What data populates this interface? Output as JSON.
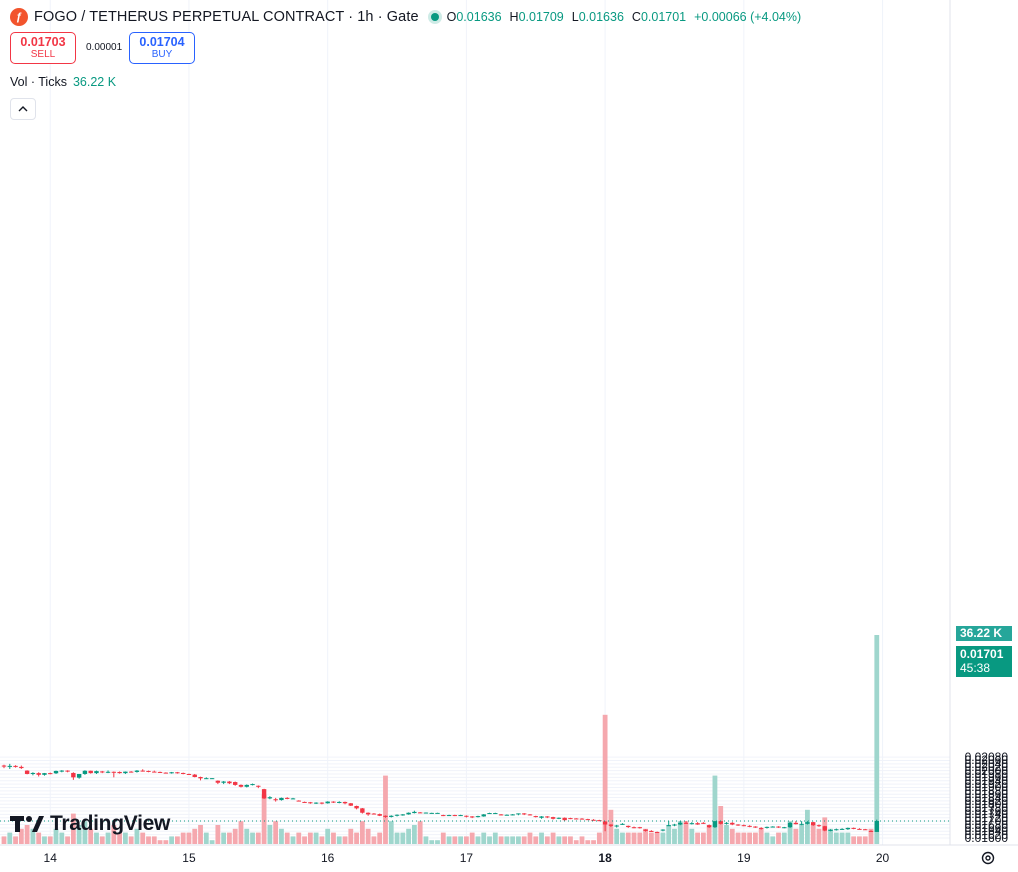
{
  "header": {
    "symbol_title": "FOGO / TETHERUS PERPETUAL CONTRACT · 1h · Gate",
    "icon": "fogo-logo-icon",
    "open_label": "O",
    "open_value": "0.01636",
    "high_label": "H",
    "high_value": "0.01709",
    "low_label": "L",
    "low_value": "0.01636",
    "close_label": "C",
    "close_value": "0.01701",
    "change": "+0.00066 (+4.04%)"
  },
  "trade": {
    "sell_price": "0.01703",
    "sell_label": "SELL",
    "spread": "0.00001",
    "buy_price": "0.01704",
    "buy_label": "BUY"
  },
  "volume_legend": {
    "label": "Vol · Ticks",
    "value": "36.22 K"
  },
  "price_tags": {
    "volume": "36.22 K",
    "price": "0.01701",
    "countdown": "45:38"
  },
  "branding": {
    "logo_text": "TradingView"
  },
  "colors": {
    "up": "#089981",
    "down": "#f23645",
    "up_volume": "#9fd6cd",
    "down_volume": "#f5a8ae",
    "grid": "#f0f3fa"
  },
  "chart_data": {
    "type": "candlestick",
    "y_axis": {
      "range": [
        0.0159,
        0.0209
      ],
      "ticks": [
        "0.02080",
        "0.02060",
        "0.02040",
        "0.02020",
        "0.02000",
        "0.01980",
        "0.01960",
        "0.01940",
        "0.01920",
        "0.01900",
        "0.01880",
        "0.01860",
        "0.01840",
        "0.01820",
        "0.01800",
        "0.01780",
        "0.01760",
        "0.01740",
        "0.01720",
        "0.01700",
        "0.01680",
        "0.01660",
        "0.01640",
        "0.01620",
        "0.01600"
      ]
    },
    "x_axis": {
      "ticks": [
        {
          "label": "14",
          "index": 8,
          "bold": false
        },
        {
          "label": "15",
          "index": 32,
          "bold": false
        },
        {
          "label": "16",
          "index": 56,
          "bold": false
        },
        {
          "label": "17",
          "index": 80,
          "bold": false
        },
        {
          "label": "18",
          "index": 104,
          "bold": true
        },
        {
          "label": "19",
          "index": 128,
          "bold": false
        },
        {
          "label": "20",
          "index": 152,
          "bold": false
        }
      ]
    },
    "candles": [
      [
        0.0203,
        0.02035,
        0.02015,
        0.02025,
        0.2
      ],
      [
        0.02025,
        0.0204,
        0.0201,
        0.02028,
        0.3
      ],
      [
        0.02028,
        0.02032,
        0.02018,
        0.02022,
        0.2
      ],
      [
        0.02022,
        0.0203,
        0.0201,
        0.02015,
        0.4
      ],
      [
        0.02,
        0.02002,
        0.01978,
        0.0198,
        0.5
      ],
      [
        0.0198,
        0.0199,
        0.01972,
        0.01986,
        0.4
      ],
      [
        0.01985,
        0.0199,
        0.01965,
        0.01975,
        0.3
      ],
      [
        0.01975,
        0.01986,
        0.0197,
        0.01985,
        0.2
      ],
      [
        0.01985,
        0.01988,
        0.01978,
        0.01984,
        0.2
      ],
      [
        0.01984,
        0.02,
        0.0198,
        0.01998,
        0.4
      ],
      [
        0.01998,
        0.02003,
        0.0199,
        0.02,
        0.3
      ],
      [
        0.02,
        0.02002,
        0.0199,
        0.01994,
        0.2
      ],
      [
        0.01986,
        0.0199,
        0.01945,
        0.0196,
        0.8
      ],
      [
        0.01958,
        0.0198,
        0.01952,
        0.0198,
        0.5
      ],
      [
        0.0198,
        0.02002,
        0.01975,
        0.01999,
        0.6
      ],
      [
        0.01999,
        0.02,
        0.01982,
        0.01985,
        0.4
      ],
      [
        0.01985,
        0.02,
        0.0198,
        0.01997,
        0.3
      ],
      [
        0.01995,
        0.01998,
        0.01985,
        0.0199,
        0.2
      ],
      [
        0.0199,
        0.02001,
        0.01985,
        0.01993,
        0.3
      ],
      [
        0.01993,
        0.01995,
        0.0196,
        0.0199,
        0.5
      ],
      [
        0.01992,
        0.01995,
        0.01982,
        0.01985,
        0.3
      ],
      [
        0.01985,
        0.01995,
        0.0198,
        0.01994,
        0.3
      ],
      [
        0.01994,
        0.01997,
        0.01988,
        0.01992,
        0.2
      ],
      [
        0.01992,
        0.02003,
        0.01988,
        0.02,
        0.4
      ],
      [
        0.02,
        0.02008,
        0.01994,
        0.01998,
        0.3
      ],
      [
        0.01998,
        0.02,
        0.0199,
        0.01996,
        0.2
      ],
      [
        0.01994,
        0.02,
        0.0199,
        0.01992,
        0.2
      ],
      [
        0.01992,
        0.01994,
        0.01986,
        0.0199,
        0.1
      ],
      [
        0.01988,
        0.0199,
        0.01986,
        0.01987,
        0.1
      ],
      [
        0.01987,
        0.01992,
        0.01982,
        0.0199,
        0.2
      ],
      [
        0.0199,
        0.01992,
        0.01982,
        0.01986,
        0.2
      ],
      [
        0.01986,
        0.01988,
        0.01978,
        0.0198,
        0.3
      ],
      [
        0.0198,
        0.01982,
        0.01974,
        0.01978,
        0.3
      ],
      [
        0.01976,
        0.0198,
        0.0196,
        0.01962,
        0.4
      ],
      [
        0.01962,
        0.01964,
        0.01942,
        0.01954,
        0.5
      ],
      [
        0.01954,
        0.0196,
        0.0195,
        0.01955,
        0.3
      ],
      [
        0.01955,
        0.01956,
        0.01954,
        0.01955,
        0.1
      ],
      [
        0.0194,
        0.01942,
        0.0192,
        0.01928,
        0.5
      ],
      [
        0.01928,
        0.01938,
        0.0192,
        0.01935,
        0.3
      ],
      [
        0.01935,
        0.01938,
        0.0192,
        0.01925,
        0.3
      ],
      [
        0.01932,
        0.01935,
        0.0191,
        0.01915,
        0.4
      ],
      [
        0.01915,
        0.01918,
        0.019,
        0.01904,
        0.6
      ],
      [
        0.01904,
        0.01918,
        0.019,
        0.01915,
        0.4
      ],
      [
        0.01915,
        0.01923,
        0.01912,
        0.0192,
        0.3
      ],
      [
        0.0191,
        0.01912,
        0.01896,
        0.01905,
        0.3
      ],
      [
        0.0189,
        0.01892,
        0.01832,
        0.01835,
        1.3
      ],
      [
        0.01835,
        0.01848,
        0.0183,
        0.01842,
        0.5
      ],
      [
        0.0183,
        0.01838,
        0.01816,
        0.01825,
        0.6
      ],
      [
        0.01825,
        0.0184,
        0.01822,
        0.01838,
        0.4
      ],
      [
        0.01838,
        0.01842,
        0.0183,
        0.01833,
        0.3
      ],
      [
        0.01835,
        0.01838,
        0.01833,
        0.01835,
        0.2
      ],
      [
        0.01822,
        0.01824,
        0.01818,
        0.01818,
        0.3
      ],
      [
        0.01814,
        0.01816,
        0.0181,
        0.01812,
        0.2
      ],
      [
        0.01812,
        0.01814,
        0.01803,
        0.01806,
        0.3
      ],
      [
        0.01806,
        0.01812,
        0.01802,
        0.0181,
        0.3
      ],
      [
        0.0181,
        0.01812,
        0.018,
        0.01806,
        0.2
      ],
      [
        0.01806,
        0.01818,
        0.01804,
        0.01816,
        0.4
      ],
      [
        0.01816,
        0.01818,
        0.01808,
        0.0181,
        0.3
      ],
      [
        0.0181,
        0.01818,
        0.01806,
        0.01814,
        0.2
      ],
      [
        0.01814,
        0.01816,
        0.018,
        0.01806,
        0.2
      ],
      [
        0.01806,
        0.01808,
        0.0179,
        0.01792,
        0.4
      ],
      [
        0.0179,
        0.01792,
        0.0177,
        0.01776,
        0.3
      ],
      [
        0.01776,
        0.01778,
        0.01745,
        0.0175,
        0.6
      ],
      [
        0.0175,
        0.01752,
        0.01732,
        0.0174,
        0.4
      ],
      [
        0.01745,
        0.01748,
        0.0174,
        0.01742,
        0.2
      ],
      [
        0.01742,
        0.01745,
        0.0173,
        0.01732,
        0.3
      ],
      [
        0.01732,
        0.01734,
        0.0172,
        0.01725,
        1.8
      ],
      [
        0.01725,
        0.01735,
        0.01722,
        0.01732,
        0.6
      ],
      [
        0.01732,
        0.0174,
        0.01728,
        0.01738,
        0.3
      ],
      [
        0.01735,
        0.01742,
        0.01732,
        0.0174,
        0.3
      ],
      [
        0.0174,
        0.01752,
        0.01738,
        0.0175,
        0.4
      ],
      [
        0.01748,
        0.01762,
        0.01746,
        0.01755,
        0.5
      ],
      [
        0.01752,
        0.01754,
        0.01748,
        0.0175,
        0.6
      ],
      [
        0.0175,
        0.01752,
        0.01749,
        0.01751,
        0.2
      ],
      [
        0.01749,
        0.0175,
        0.01748,
        0.01749,
        0.1
      ],
      [
        0.01749,
        0.0175,
        0.01748,
        0.01749,
        0.1
      ],
      [
        0.01736,
        0.01738,
        0.0173,
        0.0173,
        0.3
      ],
      [
        0.01736,
        0.01738,
        0.01732,
        0.01736,
        0.2
      ],
      [
        0.01736,
        0.01738,
        0.0173,
        0.01733,
        0.2
      ],
      [
        0.01736,
        0.01738,
        0.01733,
        0.01736,
        0.2
      ],
      [
        0.01732,
        0.01734,
        0.01722,
        0.01728,
        0.2
      ],
      [
        0.01728,
        0.0173,
        0.01718,
        0.01724,
        0.3
      ],
      [
        0.01724,
        0.01732,
        0.01722,
        0.0173,
        0.2
      ],
      [
        0.01728,
        0.01742,
        0.01726,
        0.0174,
        0.3
      ],
      [
        0.01748,
        0.0175,
        0.01746,
        0.01748,
        0.2
      ],
      [
        0.01748,
        0.0175,
        0.01746,
        0.01748,
        0.3
      ],
      [
        0.0174,
        0.01742,
        0.01734,
        0.01736,
        0.2
      ],
      [
        0.01736,
        0.0174,
        0.01734,
        0.01738,
        0.2
      ],
      [
        0.01738,
        0.01742,
        0.01734,
        0.0174,
        0.2
      ],
      [
        0.01742,
        0.01746,
        0.01735,
        0.01746,
        0.2
      ],
      [
        0.01746,
        0.01748,
        0.01736,
        0.0174,
        0.2
      ],
      [
        0.0174,
        0.01742,
        0.01734,
        0.01736,
        0.3
      ],
      [
        0.0173,
        0.01732,
        0.01722,
        0.01725,
        0.2
      ],
      [
        0.0172,
        0.0173,
        0.01714,
        0.01728,
        0.3
      ],
      [
        0.01728,
        0.0173,
        0.01718,
        0.01724,
        0.2
      ],
      [
        0.01724,
        0.01726,
        0.0171,
        0.01714,
        0.3
      ],
      [
        0.01714,
        0.01722,
        0.01712,
        0.0172,
        0.2
      ],
      [
        0.0172,
        0.01722,
        0.01704,
        0.01706,
        0.2
      ],
      [
        0.01718,
        0.0172,
        0.01712,
        0.01716,
        0.2
      ],
      [
        0.01716,
        0.01718,
        0.01714,
        0.01715,
        0.1
      ],
      [
        0.01715,
        0.01718,
        0.0171,
        0.01712,
        0.2
      ],
      [
        0.01712,
        0.01714,
        0.01708,
        0.0171,
        0.1
      ],
      [
        0.01708,
        0.01712,
        0.01704,
        0.01706,
        0.1
      ],
      [
        0.01706,
        0.01708,
        0.017,
        0.017,
        0.3
      ],
      [
        0.01698,
        0.017,
        0.0164,
        0.0168,
        3.4
      ],
      [
        0.0168,
        0.01682,
        0.01665,
        0.01672,
        0.9
      ],
      [
        0.01672,
        0.01678,
        0.01662,
        0.01674,
        0.4
      ],
      [
        0.0168,
        0.01688,
        0.01678,
        0.01684,
        0.3
      ],
      [
        0.01672,
        0.01674,
        0.0166,
        0.01665,
        0.3
      ],
      [
        0.01664,
        0.01668,
        0.01658,
        0.0166,
        0.3
      ],
      [
        0.01664,
        0.01666,
        0.01656,
        0.01658,
        0.3
      ],
      [
        0.0165,
        0.01652,
        0.01638,
        0.01642,
        0.4
      ],
      [
        0.01642,
        0.01646,
        0.01636,
        0.0164,
        0.3
      ],
      [
        0.01636,
        0.01638,
        0.0163,
        0.01632,
        0.3
      ],
      [
        0.01644,
        0.01652,
        0.0164,
        0.0165,
        0.3
      ],
      [
        0.01676,
        0.017,
        0.01672,
        0.01676,
        0.5
      ],
      [
        0.01676,
        0.01684,
        0.0167,
        0.0168,
        0.4
      ],
      [
        0.0168,
        0.017,
        0.01676,
        0.0169,
        0.6
      ],
      [
        0.0169,
        0.017,
        0.01684,
        0.01686,
        0.6
      ],
      [
        0.01686,
        0.01694,
        0.0168,
        0.01688,
        0.4
      ],
      [
        0.01688,
        0.01694,
        0.01678,
        0.0168,
        0.3
      ],
      [
        0.0169,
        0.01694,
        0.01684,
        0.01686,
        0.3
      ],
      [
        0.01676,
        0.0168,
        0.0166,
        0.01664,
        0.5
      ],
      [
        0.01664,
        0.017,
        0.0166,
        0.017,
        1.8
      ],
      [
        0.017,
        0.01702,
        0.0168,
        0.01684,
        1.0
      ],
      [
        0.01684,
        0.01694,
        0.0168,
        0.0169,
        0.5
      ],
      [
        0.0169,
        0.01694,
        0.01676,
        0.0168,
        0.4
      ],
      [
        0.0168,
        0.01682,
        0.01672,
        0.01676,
        0.3
      ],
      [
        0.01676,
        0.0168,
        0.0167,
        0.01672,
        0.3
      ],
      [
        0.01672,
        0.01676,
        0.01664,
        0.01668,
        0.3
      ],
      [
        0.01668,
        0.0167,
        0.0166,
        0.01662,
        0.3
      ],
      [
        0.0166,
        0.01664,
        0.0165,
        0.01656,
        0.4
      ],
      [
        0.01664,
        0.01668,
        0.01656,
        0.01666,
        0.3
      ],
      [
        0.01666,
        0.0167,
        0.01664,
        0.01668,
        0.2
      ],
      [
        0.01668,
        0.0167,
        0.0166,
        0.01664,
        0.3
      ],
      [
        0.01662,
        0.01666,
        0.01658,
        0.01664,
        0.3
      ],
      [
        0.01664,
        0.01694,
        0.0166,
        0.0169,
        0.6
      ],
      [
        0.0169,
        0.017,
        0.0168,
        0.01682,
        0.4
      ],
      [
        0.01682,
        0.017,
        0.01676,
        0.01684,
        0.5
      ],
      [
        0.01684,
        0.017,
        0.0168,
        0.01694,
        0.9
      ],
      [
        0.01694,
        0.01696,
        0.01672,
        0.01676,
        0.5
      ],
      [
        0.01676,
        0.0168,
        0.01666,
        0.0167,
        0.4
      ],
      [
        0.0167,
        0.01672,
        0.0164,
        0.01644,
        0.7
      ],
      [
        0.01644,
        0.01652,
        0.0164,
        0.01648,
        0.4
      ],
      [
        0.01648,
        0.01656,
        0.01644,
        0.01652,
        0.3
      ],
      [
        0.01652,
        0.01658,
        0.01648,
        0.01654,
        0.3
      ],
      [
        0.01652,
        0.01662,
        0.01648,
        0.0166,
        0.3
      ],
      [
        0.0166,
        0.01662,
        0.01652,
        0.01654,
        0.2
      ],
      [
        0.01654,
        0.01658,
        0.0165,
        0.01652,
        0.2
      ],
      [
        0.01652,
        0.01654,
        0.01648,
        0.0165,
        0.2
      ],
      [
        0.01642,
        0.01646,
        0.01636,
        0.01638,
        0.4
      ],
      [
        0.01636,
        0.01709,
        0.01636,
        0.01701,
        5.5
      ]
    ]
  }
}
